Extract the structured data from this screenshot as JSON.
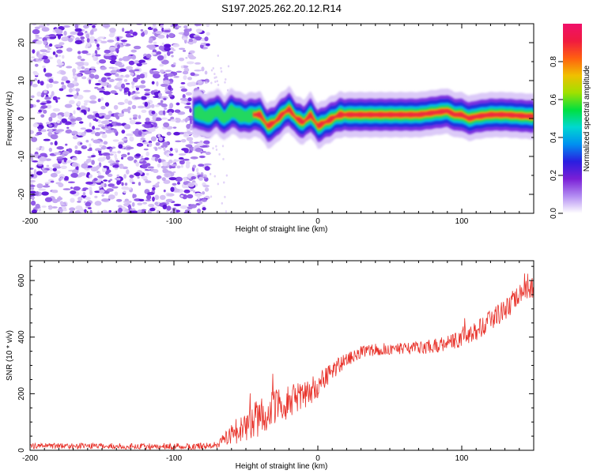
{
  "title": "S197.2025.262.20.12.R14",
  "colors": {
    "line": "#e8322a",
    "speckle_light": "#d9c6f7",
    "speckle_dark": "#6a1fe0",
    "frame": "#000000"
  },
  "chart_data": [
    {
      "type": "heatmap",
      "name": "spectrogram",
      "xlabel": "Height of straight line (km)",
      "ylabel": "Frequency (Hz)",
      "xlim": [
        -200,
        150
      ],
      "ylim": [
        -25,
        25
      ],
      "xticks": [
        -200,
        -100,
        0,
        100
      ],
      "xtick_labels": [
        "-200",
        "-100",
        "0",
        "100"
      ],
      "yticks": [
        -20,
        -10,
        0,
        10,
        20
      ],
      "ytick_labels": [
        "-20",
        "-10",
        "0",
        "10",
        "20"
      ],
      "noise_region": [
        -200,
        -76
      ],
      "signal_track": {
        "x": [
          -87,
          -82,
          -78,
          -74,
          -70,
          -65,
          -60,
          -55,
          -50,
          -45,
          -40,
          -35,
          -30,
          -25,
          -20,
          -15,
          -10,
          -5,
          0,
          5,
          10,
          15,
          20,
          30,
          50,
          70,
          90,
          95,
          100,
          105,
          110,
          120,
          130,
          150
        ],
        "freq": [
          1.5,
          1.5,
          0.5,
          1.0,
          2.0,
          0.0,
          2.0,
          1.0,
          0.5,
          1.0,
          1.0,
          -2.0,
          -1.0,
          1.0,
          2.5,
          0.0,
          -1.0,
          1.0,
          -2.0,
          -1.0,
          0.0,
          1.0,
          1.0,
          1.0,
          1.0,
          1.0,
          2.0,
          1.0,
          1.0,
          0.0,
          0.5,
          1.0,
          1.0,
          0.5
        ]
      }
    },
    {
      "type": "colorbar",
      "name": "amplitude-colorbar",
      "label": "Normalized spectral amplitude",
      "range": [
        0,
        1
      ],
      "ticks": [
        0,
        0.2,
        0.4,
        0.6,
        0.8
      ],
      "tick_labels": [
        "0.0",
        "0.2",
        "0.4",
        "0.6",
        "0.8"
      ],
      "stops": [
        "#ffffff",
        "#b38cf2",
        "#7a1fd6",
        "#2a1ee0",
        "#0090f0",
        "#00d8d0",
        "#00e040",
        "#a0e000",
        "#f0c000",
        "#ff6010",
        "#f01a40",
        "#f0106a"
      ]
    },
    {
      "type": "line",
      "name": "snr-line",
      "xlabel": "Height of straight line (km)",
      "ylabel": "SNR (10 * v/v)",
      "xlim": [
        -200,
        150
      ],
      "ylim": [
        0,
        670
      ],
      "xticks": [
        -200,
        -100,
        0,
        100
      ],
      "xtick_labels": [
        "-200",
        "-100",
        "0",
        "100"
      ],
      "yticks": [
        0,
        200,
        400,
        600
      ],
      "ytick_labels": [
        "0",
        "200",
        "400",
        "600"
      ],
      "trend": {
        "x": [
          -200,
          -150,
          -100,
          -80,
          -70,
          -65,
          -60,
          -55,
          -50,
          -45,
          -40,
          -35,
          -30,
          -25,
          -20,
          -15,
          -10,
          -5,
          0,
          5,
          10,
          15,
          20,
          25,
          30,
          40,
          50,
          60,
          70,
          80,
          90,
          100,
          110,
          120,
          130,
          140,
          150
        ],
        "y": [
          15,
          15,
          14,
          14,
          20,
          35,
          60,
          70,
          80,
          100,
          120,
          130,
          150,
          160,
          175,
          190,
          195,
          210,
          230,
          255,
          280,
          305,
          320,
          335,
          345,
          355,
          358,
          360,
          362,
          368,
          378,
          395,
          420,
          460,
          500,
          545,
          585
        ]
      },
      "noise_amplitude": {
        "x": [
          -200,
          -70,
          -60,
          -40,
          -20,
          0,
          20,
          60,
          100,
          150
        ],
        "y": [
          10,
          12,
          40,
          70,
          60,
          45,
          25,
          20,
          30,
          45
        ]
      }
    }
  ]
}
